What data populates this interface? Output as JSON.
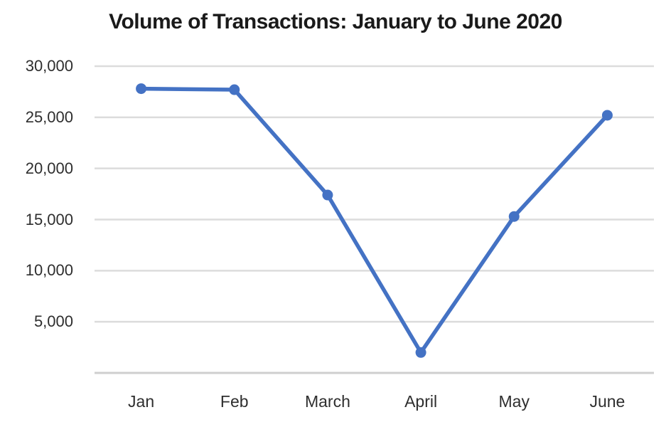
{
  "title": "Volume of Transactions: January to June 2020",
  "colors": {
    "line": "#4472C4",
    "marker": "#4472C4",
    "gridline": "#dcdcdc",
    "axis_line": "#cfcfcf",
    "title_text": "#1a1a1a",
    "tick_text": "#2e2e2e",
    "background": "#ffffff"
  },
  "chart_data": {
    "type": "line",
    "title": "Volume of Transactions: January to June 2020",
    "categories": [
      "Jan",
      "Feb",
      "March",
      "April",
      "May",
      "June"
    ],
    "values": [
      27800,
      27700,
      17400,
      2000,
      15300,
      25200
    ],
    "xlabel": "",
    "ylabel": "",
    "ylim": [
      0,
      30000
    ],
    "ytick_values": [
      30000,
      25000,
      20000,
      15000,
      10000,
      5000
    ],
    "ytick_labels": [
      "30,000",
      "25,000",
      "20,000",
      "15,000",
      "10,000",
      "5,000"
    ],
    "grid": "horizontal",
    "legend": "none",
    "marker": "circle"
  }
}
